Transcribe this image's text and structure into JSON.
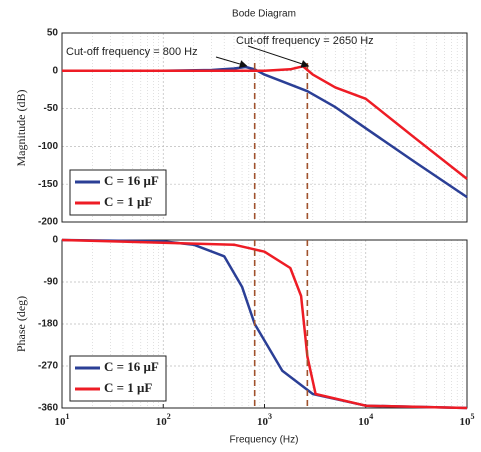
{
  "chart_data": [
    {
      "type": "line",
      "title": "Bode Diagram",
      "ylabel": "Magnitude (dB)",
      "xlim": [
        10,
        100000
      ],
      "ylim": [
        -200,
        50
      ],
      "yticks": [
        50,
        0,
        -50,
        -100,
        -150,
        -200
      ],
      "log_x": true,
      "grid": true,
      "legend": "lower left",
      "annotations": [
        {
          "text": "Cut-off frequency = 800 Hz",
          "x": 800
        },
        {
          "text": "Cut-off frequency = 2650 Hz",
          "x": 2650
        }
      ],
      "series": [
        {
          "name": "C = 16 μF",
          "color": "#2b3f96",
          "x": [
            10,
            100,
            300,
            500,
            650,
            800,
            1000,
            1500,
            2650,
            5000,
            10000,
            30000,
            100000
          ],
          "values": [
            0,
            0,
            1,
            3,
            5,
            2,
            -5,
            -14,
            -27,
            -48,
            -76,
            -120,
            -167
          ]
        },
        {
          "name": "C = 1 μF",
          "color": "#ee1c25",
          "x": [
            10,
            1000,
            1800,
            2400,
            2650,
            3000,
            5000,
            10000,
            30000,
            100000
          ],
          "values": [
            0,
            0,
            2,
            6,
            1,
            -5,
            -22,
            -37,
            -88,
            -143
          ]
        }
      ]
    },
    {
      "type": "line",
      "xlabel": "Frequency (Hz)",
      "ylabel": "Phase (deg)",
      "xlim": [
        10,
        100000
      ],
      "ylim": [
        -360,
        0
      ],
      "yticks": [
        0,
        -90,
        -180,
        -270,
        -360
      ],
      "log_x": true,
      "grid": true,
      "legend": "lower left",
      "xticks": [
        {
          "value": 10,
          "label": "10",
          "exponent": "1"
        },
        {
          "value": 100,
          "label": "10",
          "exponent": "2"
        },
        {
          "value": 1000,
          "label": "10",
          "exponent": "3"
        },
        {
          "value": 10000,
          "label": "10",
          "exponent": "4"
        },
        {
          "value": 100000,
          "label": "10",
          "exponent": "5"
        }
      ],
      "series": [
        {
          "name": "C = 16 μF",
          "color": "#2b3f96",
          "x": [
            10,
            100,
            200,
            400,
            600,
            800,
            1500,
            3000,
            10000,
            100000
          ],
          "values": [
            0,
            -3,
            -10,
            -35,
            -100,
            -180,
            -280,
            -330,
            -355,
            -360
          ]
        },
        {
          "name": "C = 1 μF",
          "color": "#ee1c25",
          "x": [
            10,
            500,
            1000,
            1800,
            2300,
            2650,
            3200,
            10000,
            100000
          ],
          "values": [
            0,
            -10,
            -25,
            -60,
            -120,
            -250,
            -330,
            -355,
            -360
          ]
        }
      ]
    }
  ]
}
